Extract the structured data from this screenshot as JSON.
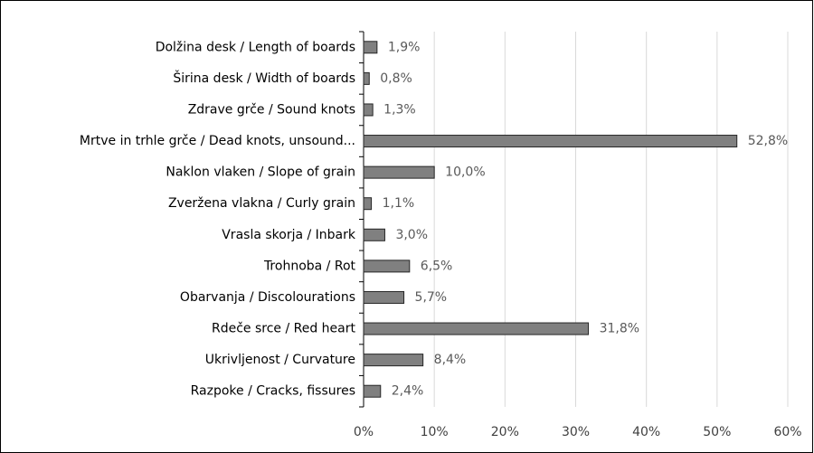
{
  "chart_data": {
    "type": "barh",
    "categories": [
      "Dolžina desk / Length of boards",
      "Širina desk / Width of boards",
      "Zdrave grče / Sound knots",
      "Mrtve in trhle grče / Dead knots, unsound...",
      "Naklon vlaken / Slope of grain",
      "Zveržena vlakna / Curly grain",
      "Vrasla skorja / Inbark",
      "Trohnoba / Rot",
      "Obarvanja / Discolourations",
      "Rdeče srce / Red heart",
      "Ukrivljenost / Curvature",
      "Razpoke / Cracks, fissures"
    ],
    "values": [
      1.9,
      0.8,
      1.3,
      52.8,
      10.0,
      1.1,
      3.0,
      6.5,
      5.7,
      31.8,
      8.4,
      2.4
    ],
    "value_labels": [
      "1,9%",
      "0,8%",
      "1,3%",
      "52,8%",
      "10,0%",
      "1,1%",
      "3,0%",
      "6,5%",
      "5,7%",
      "31,8%",
      "8,4%",
      "2,4%"
    ],
    "color": "#808080",
    "xlim": [
      0,
      60
    ],
    "xticks": [
      {
        "value": 0,
        "label": "0%"
      },
      {
        "value": 10,
        "label": "10%"
      },
      {
        "value": 20,
        "label": "20%"
      },
      {
        "value": 30,
        "label": "30%"
      },
      {
        "value": 40,
        "label": "40%"
      },
      {
        "value": 50,
        "label": "50%"
      },
      {
        "value": 60,
        "label": "60%"
      }
    ],
    "grid": true
  }
}
